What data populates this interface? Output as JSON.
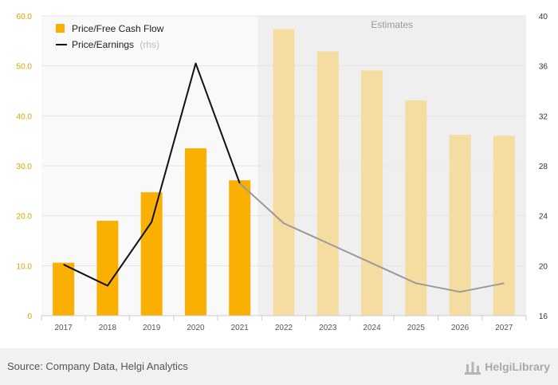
{
  "chart_data": {
    "type": "bar",
    "categories": [
      "2017",
      "2018",
      "2019",
      "2020",
      "2021",
      "2022",
      "2023",
      "2024",
      "2025",
      "2026",
      "2027"
    ],
    "estimate_from_index": 5,
    "estimates_label": "Estimates",
    "series": [
      {
        "name": "Price/Free Cash Flow",
        "type": "bar",
        "axis": "left",
        "values": [
          10.6,
          19.0,
          24.7,
          33.5,
          27.1,
          57.4,
          52.9,
          49.1,
          43.1,
          36.2,
          36.0
        ]
      },
      {
        "name": "Price/Earnings",
        "note": "(rhs)",
        "type": "line",
        "axis": "right",
        "values": [
          20.1,
          18.4,
          23.5,
          36.2,
          26.6,
          23.4,
          21.8,
          20.2,
          18.6,
          17.9,
          18.6
        ]
      }
    ],
    "y_left": {
      "min": 0,
      "max": 60,
      "ticks": [
        "0",
        "10.0",
        "20.0",
        "30.0",
        "40.0",
        "50.0",
        "60.0"
      ]
    },
    "y_right": {
      "min": 16,
      "max": 40,
      "ticks": [
        "16",
        "20",
        "24",
        "28",
        "32",
        "36",
        "40"
      ]
    },
    "grid": true,
    "legend_position": "top-left"
  },
  "footer": {
    "source": "Source: Company Data, Helgi Analytics",
    "logo_text": "HelgiLibrary"
  },
  "colors": {
    "bar": "#f9b002",
    "bar_estimate": "#f5dda2",
    "line": "#111111",
    "line_estimate": "#9a9a9a",
    "estimate_band": "#efefef",
    "actual_band": "#f9f9f9",
    "grid": "#e4e4e4",
    "left_axis_text": "#d9a300"
  }
}
